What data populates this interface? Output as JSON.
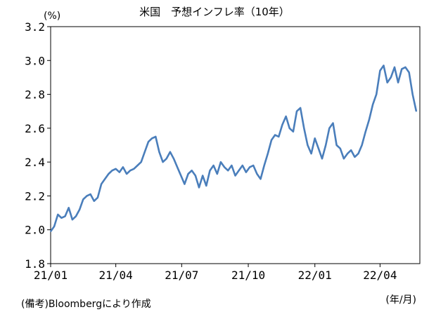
{
  "chart_data": {
    "type": "line",
    "title": "米国　予想インフレ率（10年）",
    "y_unit": "(%)",
    "x_unit": "(年/月)",
    "source_note": "(備考)Bloombergにより作成",
    "ylim": [
      1.8,
      3.2
    ],
    "y_ticks": [
      "1.8",
      "2.0",
      "2.2",
      "2.4",
      "2.6",
      "2.8",
      "3.0",
      "3.2"
    ],
    "x_tick_labels": [
      "21/01",
      "21/04",
      "21/07",
      "21/10",
      "22/01",
      "22/04"
    ],
    "grid": false,
    "legend": "none",
    "line_color": "#4a7ebb",
    "series": [
      {
        "x": [
          "2021-01-01",
          "2021-01-06",
          "2021-01-11",
          "2021-01-16",
          "2021-01-21",
          "2021-01-26",
          "2021-01-31",
          "2021-02-05",
          "2021-02-10",
          "2021-02-15",
          "2021-02-20",
          "2021-02-25",
          "2021-03-02",
          "2021-03-07",
          "2021-03-12",
          "2021-03-17",
          "2021-03-22",
          "2021-03-27",
          "2021-04-01",
          "2021-04-06",
          "2021-04-11",
          "2021-04-16",
          "2021-04-21",
          "2021-04-26",
          "2021-05-01",
          "2021-05-06",
          "2021-05-11",
          "2021-05-16",
          "2021-05-21",
          "2021-05-26",
          "2021-05-31",
          "2021-06-05",
          "2021-06-10",
          "2021-06-15",
          "2021-06-20",
          "2021-06-25",
          "2021-06-30",
          "2021-07-05",
          "2021-07-10",
          "2021-07-15",
          "2021-07-20",
          "2021-07-25",
          "2021-07-30",
          "2021-08-04",
          "2021-08-09",
          "2021-08-14",
          "2021-08-19",
          "2021-08-24",
          "2021-08-29",
          "2021-09-03",
          "2021-09-08",
          "2021-09-13",
          "2021-09-18",
          "2021-09-23",
          "2021-09-28",
          "2021-10-03",
          "2021-10-08",
          "2021-10-13",
          "2021-10-18",
          "2021-10-23",
          "2021-10-28",
          "2021-11-02",
          "2021-11-07",
          "2021-11-12",
          "2021-11-17",
          "2021-11-22",
          "2021-11-27",
          "2021-12-02",
          "2021-12-07",
          "2021-12-12",
          "2021-12-17",
          "2021-12-22",
          "2021-12-27",
          "2022-01-01",
          "2022-01-06",
          "2022-01-11",
          "2022-01-16",
          "2022-01-21",
          "2022-01-26",
          "2022-01-31",
          "2022-02-05",
          "2022-02-10",
          "2022-02-15",
          "2022-02-20",
          "2022-02-25",
          "2022-03-02",
          "2022-03-07",
          "2022-03-12",
          "2022-03-17",
          "2022-03-22",
          "2022-03-27",
          "2022-04-01",
          "2022-04-06",
          "2022-04-11",
          "2022-04-16",
          "2022-04-21",
          "2022-04-26",
          "2022-05-01",
          "2022-05-06",
          "2022-05-11",
          "2022-05-16",
          "2022-05-21"
        ],
        "values": [
          1.99,
          2.02,
          2.09,
          2.07,
          2.08,
          2.13,
          2.06,
          2.08,
          2.12,
          2.18,
          2.2,
          2.21,
          2.17,
          2.19,
          2.27,
          2.3,
          2.33,
          2.35,
          2.36,
          2.34,
          2.37,
          2.33,
          2.35,
          2.36,
          2.38,
          2.4,
          2.46,
          2.52,
          2.54,
          2.55,
          2.46,
          2.4,
          2.42,
          2.46,
          2.42,
          2.37,
          2.32,
          2.27,
          2.33,
          2.35,
          2.32,
          2.25,
          2.32,
          2.26,
          2.35,
          2.38,
          2.33,
          2.4,
          2.37,
          2.35,
          2.38,
          2.32,
          2.35,
          2.38,
          2.34,
          2.37,
          2.38,
          2.33,
          2.3,
          2.38,
          2.45,
          2.53,
          2.56,
          2.55,
          2.62,
          2.67,
          2.6,
          2.58,
          2.7,
          2.72,
          2.6,
          2.5,
          2.45,
          2.54,
          2.48,
          2.42,
          2.5,
          2.6,
          2.63,
          2.5,
          2.48,
          2.42,
          2.45,
          2.47,
          2.43,
          2.45,
          2.5,
          2.58,
          2.65,
          2.74,
          2.8,
          2.94,
          2.97,
          2.87,
          2.9,
          2.96,
          2.87,
          2.95,
          2.96,
          2.93,
          2.8,
          2.7
        ]
      }
    ]
  }
}
